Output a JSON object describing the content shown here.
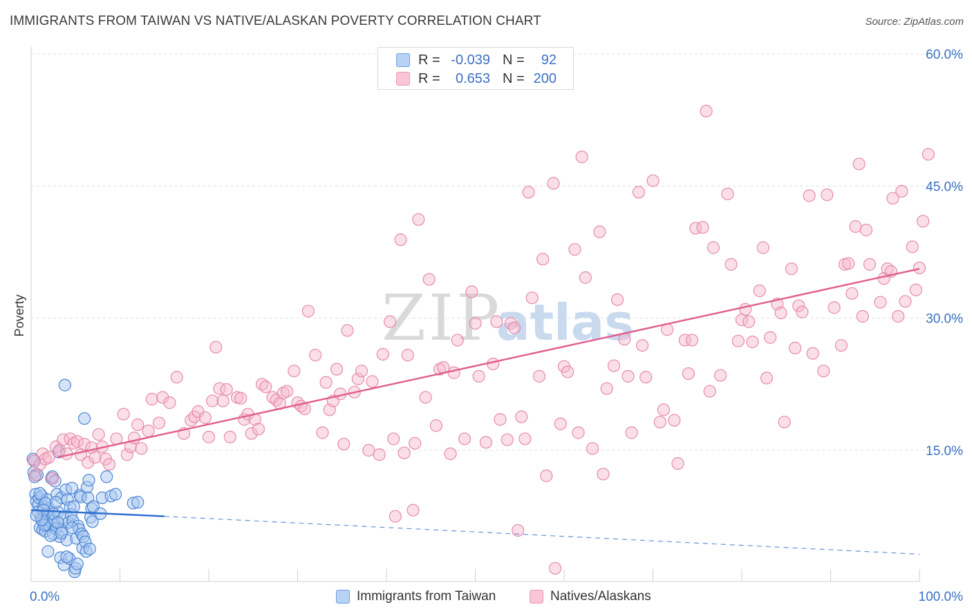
{
  "title": "IMMIGRANTS FROM TAIWAN VS NATIVE/ALASKAN POVERTY CORRELATION CHART",
  "source": "Source: ZipAtlas.com",
  "watermark": {
    "zip": "ZIP",
    "atlas": "atlas"
  },
  "colors": {
    "blue_fill": "#a9c8f0",
    "blue_stroke": "#4a86d4",
    "blue_line": "#2f6fd0",
    "pink_fill": "#f6b8cc",
    "pink_stroke": "#e58aa8",
    "pink_line": "#e0608e",
    "axis_label": "#3a6fc4",
    "grid": "#dddddd"
  },
  "stats": {
    "r_label": "R =",
    "n_label": "N =",
    "series": [
      {
        "name": "Immigrants from Taiwan",
        "r": "-0.039",
        "n": "92"
      },
      {
        "name": "Natives/Alaskans",
        "r": "0.653",
        "n": "200"
      }
    ]
  },
  "chart_data": {
    "type": "scatter",
    "title": "IMMIGRANTS FROM TAIWAN VS NATIVE/ALASKAN POVERTY CORRELATION CHART",
    "xlabel": "",
    "ylabel": "Poverty",
    "x_tick_labels": [
      "0.0%",
      "100.0%"
    ],
    "y_tick_labels": [
      "15.0%",
      "30.0%",
      "45.0%",
      "60.0%"
    ],
    "y_ticks": [
      15,
      30,
      45,
      60
    ],
    "xlim": [
      0,
      100
    ],
    "ylim": [
      0,
      63
    ],
    "legend": [
      "Immigrants from Taiwan",
      "Natives/Alaskans"
    ],
    "series": [
      {
        "name": "Immigrants from Taiwan",
        "trend": {
          "x": [
            0,
            15
          ],
          "y": [
            8.2,
            7.5
          ],
          "dashed_to": [
            100,
            3.2
          ]
        },
        "points": [
          [
            0.3,
            12.5
          ],
          [
            0.4,
            13.8
          ],
          [
            0.5,
            10.0
          ],
          [
            0.6,
            9.2
          ],
          [
            0.7,
            12.2
          ],
          [
            0.8,
            8.8
          ],
          [
            0.9,
            9.6
          ],
          [
            1.0,
            6.2
          ],
          [
            1.1,
            7.4
          ],
          [
            1.2,
            9.8
          ],
          [
            1.3,
            6.0
          ],
          [
            1.4,
            8.6
          ],
          [
            1.5,
            7.2
          ],
          [
            1.6,
            5.8
          ],
          [
            1.7,
            6.6
          ],
          [
            1.8,
            9.4
          ],
          [
            1.9,
            3.5
          ],
          [
            2.0,
            7.6
          ],
          [
            2.1,
            6.4
          ],
          [
            2.2,
            6.9
          ],
          [
            2.3,
            11.8
          ],
          [
            2.4,
            12.0
          ],
          [
            2.5,
            5.5
          ],
          [
            2.6,
            7.0
          ],
          [
            2.7,
            11.5
          ],
          [
            2.8,
            6.1
          ],
          [
            2.9,
            10.0
          ],
          [
            3.0,
            8.0
          ],
          [
            3.1,
            14.8
          ],
          [
            3.2,
            5.2
          ],
          [
            3.3,
            2.8
          ],
          [
            3.4,
            9.6
          ],
          [
            3.5,
            5.9
          ],
          [
            3.6,
            7.3
          ],
          [
            3.7,
            2.0
          ],
          [
            3.8,
            22.4
          ],
          [
            3.9,
            10.5
          ],
          [
            4.0,
            4.8
          ],
          [
            4.1,
            9.4
          ],
          [
            4.2,
            6.8
          ],
          [
            4.3,
            2.7
          ],
          [
            4.4,
            8.5
          ],
          [
            4.5,
            7.7
          ],
          [
            4.6,
            10.7
          ],
          [
            4.7,
            7.0
          ],
          [
            4.8,
            8.6
          ],
          [
            4.9,
            1.2
          ],
          [
            5.0,
            1.6
          ],
          [
            5.1,
            5.0
          ],
          [
            5.2,
            2.1
          ],
          [
            5.3,
            6.4
          ],
          [
            5.4,
            6.0
          ],
          [
            5.5,
            9.9
          ],
          [
            5.6,
            9.7
          ],
          [
            5.7,
            5.5
          ],
          [
            5.8,
            3.9
          ],
          [
            5.9,
            5.2
          ],
          [
            6.0,
            18.6
          ],
          [
            6.1,
            4.6
          ],
          [
            6.2,
            3.5
          ],
          [
            6.3,
            10.8
          ],
          [
            6.4,
            9.6
          ],
          [
            6.5,
            11.6
          ],
          [
            6.6,
            3.8
          ],
          [
            6.7,
            7.4
          ],
          [
            6.8,
            8.4
          ],
          [
            6.9,
            6.9
          ],
          [
            7.0,
            8.6
          ],
          [
            8.5,
            12.0
          ],
          [
            8.0,
            9.6
          ],
          [
            9.0,
            9.8
          ],
          [
            9.5,
            10.0
          ],
          [
            11.5,
            9.0
          ],
          [
            12.0,
            9.1
          ],
          [
            1.5,
            6.5
          ],
          [
            2.0,
            8.4
          ],
          [
            2.5,
            7.8
          ],
          [
            3.0,
            6.8
          ],
          [
            0.8,
            8.0
          ],
          [
            1.2,
            7.1
          ],
          [
            1.6,
            9.0
          ],
          [
            2.2,
            5.3
          ],
          [
            2.8,
            9.1
          ],
          [
            3.4,
            5.6
          ],
          [
            4.0,
            2.9
          ],
          [
            4.6,
            6.2
          ],
          [
            0.4,
            12.0
          ],
          [
            1.0,
            10.1
          ],
          [
            1.4,
            8.2
          ],
          [
            0.2,
            14.0
          ],
          [
            0.6,
            7.6
          ],
          [
            7.8,
            7.8
          ]
        ]
      },
      {
        "name": "Natives/Alaskans",
        "trend": {
          "x": [
            3,
            100
          ],
          "y": [
            14.2,
            35.6
          ]
        },
        "points": [
          [
            0.3,
            13.8
          ],
          [
            0.5,
            12.2
          ],
          [
            1.0,
            13.4
          ],
          [
            1.3,
            14.6
          ],
          [
            1.6,
            14.0
          ],
          [
            2.0,
            14.2
          ],
          [
            2.4,
            11.8
          ],
          [
            2.8,
            15.4
          ],
          [
            3.2,
            15.0
          ],
          [
            3.6,
            16.2
          ],
          [
            4.0,
            14.6
          ],
          [
            4.4,
            16.3
          ],
          [
            4.8,
            15.8
          ],
          [
            5.2,
            16.0
          ],
          [
            5.6,
            14.5
          ],
          [
            6.0,
            15.7
          ],
          [
            6.4,
            13.6
          ],
          [
            6.8,
            15.3
          ],
          [
            7.2,
            14.2
          ],
          [
            7.6,
            16.8
          ],
          [
            8.0,
            15.4
          ],
          [
            8.4,
            14.0
          ],
          [
            8.8,
            13.4
          ],
          [
            9.6,
            16.3
          ],
          [
            10.4,
            19.1
          ],
          [
            10.8,
            14.5
          ],
          [
            11.2,
            15.4
          ],
          [
            11.6,
            16.4
          ],
          [
            12.0,
            17.9
          ],
          [
            12.4,
            15.2
          ],
          [
            13.2,
            17.2
          ],
          [
            13.6,
            20.8
          ],
          [
            14.4,
            18.1
          ],
          [
            14.8,
            21.0
          ],
          [
            15.6,
            20.4
          ],
          [
            16.4,
            23.3
          ],
          [
            17.2,
            16.9
          ],
          [
            18.0,
            18.4
          ],
          [
            18.4,
            18.8
          ],
          [
            18.8,
            19.4
          ],
          [
            19.6,
            18.7
          ],
          [
            20.0,
            16.5
          ],
          [
            20.4,
            20.6
          ],
          [
            20.8,
            26.7
          ],
          [
            21.2,
            22.0
          ],
          [
            21.6,
            20.6
          ],
          [
            22.0,
            21.9
          ],
          [
            22.4,
            16.5
          ],
          [
            23.2,
            21.0
          ],
          [
            23.6,
            20.9
          ],
          [
            24.0,
            18.5
          ],
          [
            24.4,
            19.1
          ],
          [
            24.8,
            16.9
          ],
          [
            25.2,
            18.5
          ],
          [
            25.6,
            17.4
          ],
          [
            26.0,
            22.5
          ],
          [
            26.4,
            22.2
          ],
          [
            27.2,
            21.0
          ],
          [
            27.6,
            20.7
          ],
          [
            28.0,
            20.3
          ],
          [
            28.4,
            21.5
          ],
          [
            28.8,
            21.7
          ],
          [
            29.6,
            24.0
          ],
          [
            30.0,
            20.4
          ],
          [
            30.4,
            20.0
          ],
          [
            30.8,
            19.7
          ],
          [
            31.2,
            30.8
          ],
          [
            32.0,
            25.8
          ],
          [
            32.8,
            17.0
          ],
          [
            33.2,
            22.7
          ],
          [
            33.6,
            19.6
          ],
          [
            34.0,
            20.6
          ],
          [
            34.4,
            24.2
          ],
          [
            34.8,
            21.4
          ],
          [
            35.2,
            15.7
          ],
          [
            35.6,
            28.6
          ],
          [
            36.4,
            21.6
          ],
          [
            36.8,
            23.1
          ],
          [
            37.2,
            24.0
          ],
          [
            38.0,
            15.0
          ],
          [
            38.4,
            22.8
          ],
          [
            39.2,
            14.5
          ],
          [
            39.6,
            25.9
          ],
          [
            40.4,
            29.6
          ],
          [
            40.8,
            16.3
          ],
          [
            41.6,
            38.9
          ],
          [
            42.0,
            14.7
          ],
          [
            42.4,
            25.8
          ],
          [
            43.2,
            15.8
          ],
          [
            43.6,
            41.2
          ],
          [
            44.4,
            21.0
          ],
          [
            44.8,
            34.4
          ],
          [
            45.6,
            17.8
          ],
          [
            46.0,
            24.2
          ],
          [
            46.4,
            24.4
          ],
          [
            47.2,
            14.6
          ],
          [
            47.6,
            23.8
          ],
          [
            48.0,
            27.5
          ],
          [
            48.8,
            16.3
          ],
          [
            49.6,
            33.0
          ],
          [
            50.0,
            29.4
          ],
          [
            50.4,
            23.4
          ],
          [
            51.2,
            15.9
          ],
          [
            52.0,
            24.8
          ],
          [
            52.4,
            29.6
          ],
          [
            52.8,
            18.5
          ],
          [
            53.6,
            16.2
          ],
          [
            54.0,
            29.4
          ],
          [
            54.4,
            28.9
          ],
          [
            55.2,
            18.8
          ],
          [
            55.6,
            16.3
          ],
          [
            56.0,
            44.3
          ],
          [
            56.4,
            32.3
          ],
          [
            57.2,
            23.4
          ],
          [
            57.6,
            36.7
          ],
          [
            58.0,
            12.1
          ],
          [
            58.8,
            45.3
          ],
          [
            59.6,
            18.0
          ],
          [
            60.0,
            24.5
          ],
          [
            60.4,
            23.9
          ],
          [
            61.2,
            37.8
          ],
          [
            61.6,
            17.0
          ],
          [
            62.0,
            48.3
          ],
          [
            62.4,
            34.6
          ],
          [
            63.2,
            15.2
          ],
          [
            64.0,
            39.8
          ],
          [
            64.4,
            12.3
          ],
          [
            64.8,
            22.0
          ],
          [
            65.6,
            24.6
          ],
          [
            66.0,
            32.1
          ],
          [
            66.8,
            27.6
          ],
          [
            67.2,
            23.4
          ],
          [
            67.6,
            17.0
          ],
          [
            68.4,
            44.3
          ],
          [
            68.8,
            26.9
          ],
          [
            69.2,
            23.3
          ],
          [
            70.0,
            45.6
          ],
          [
            70.8,
            18.2
          ],
          [
            71.2,
            19.6
          ],
          [
            71.6,
            28.7
          ],
          [
            72.4,
            18.4
          ],
          [
            72.8,
            13.5
          ],
          [
            73.6,
            27.5
          ],
          [
            74.0,
            23.7
          ],
          [
            74.4,
            27.5
          ],
          [
            74.8,
            40.2
          ],
          [
            75.6,
            40.3
          ],
          [
            76.0,
            53.5
          ],
          [
            76.4,
            21.7
          ],
          [
            76.8,
            38.0
          ],
          [
            77.6,
            23.5
          ],
          [
            78.4,
            44.1
          ],
          [
            78.8,
            36.1
          ],
          [
            79.6,
            27.4
          ],
          [
            80.0,
            29.8
          ],
          [
            80.4,
            31.0
          ],
          [
            80.8,
            29.6
          ],
          [
            81.2,
            27.3
          ],
          [
            82.0,
            33.1
          ],
          [
            82.4,
            38.0
          ],
          [
            82.8,
            23.2
          ],
          [
            83.2,
            27.8
          ],
          [
            84.0,
            31.6
          ],
          [
            84.4,
            30.6
          ],
          [
            84.8,
            18.2
          ],
          [
            85.6,
            35.6
          ],
          [
            86.0,
            26.6
          ],
          [
            86.4,
            31.4
          ],
          [
            86.8,
            30.7
          ],
          [
            87.6,
            43.9
          ],
          [
            88.0,
            26.0
          ],
          [
            89.2,
            24.0
          ],
          [
            89.6,
            44.0
          ],
          [
            90.4,
            31.2
          ],
          [
            91.2,
            26.9
          ],
          [
            91.6,
            36.1
          ],
          [
            92.0,
            36.2
          ],
          [
            92.4,
            32.8
          ],
          [
            92.8,
            40.4
          ],
          [
            93.2,
            47.5
          ],
          [
            93.6,
            30.2
          ],
          [
            94.0,
            40.0
          ],
          [
            94.4,
            36.1
          ],
          [
            95.6,
            31.8
          ],
          [
            96.0,
            34.5
          ],
          [
            96.4,
            35.6
          ],
          [
            96.8,
            35.3
          ],
          [
            97.6,
            30.2
          ],
          [
            98.4,
            31.9
          ],
          [
            99.2,
            38.1
          ],
          [
            99.6,
            33.2
          ],
          [
            100.0,
            35.7
          ],
          [
            100.4,
            41.0
          ],
          [
            101.0,
            48.6
          ],
          [
            98.0,
            44.4
          ],
          [
            97.0,
            43.6
          ],
          [
            54.8,
            5.9
          ],
          [
            59.0,
            1.6
          ],
          [
            41.0,
            7.5
          ],
          [
            43.0,
            8.2
          ]
        ]
      }
    ]
  }
}
